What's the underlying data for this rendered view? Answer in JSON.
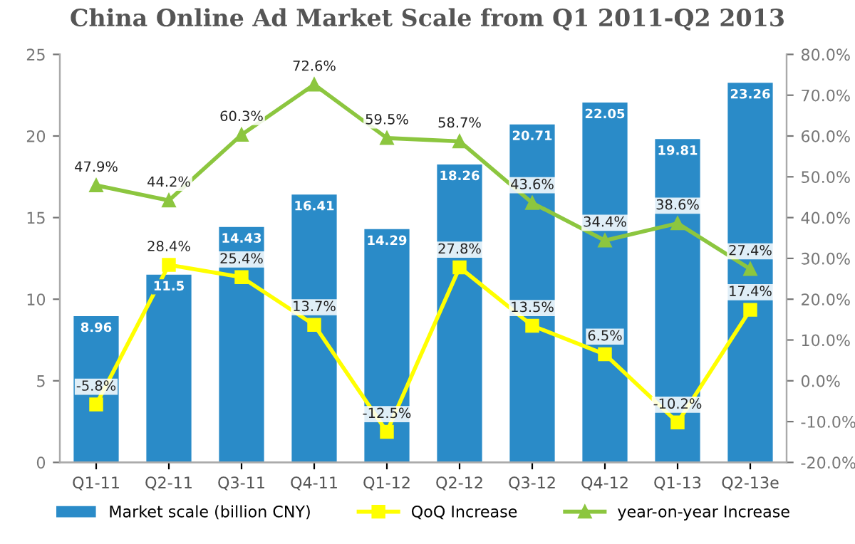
{
  "chart_data": {
    "type": "bar",
    "title": "China Online Ad Market Scale from Q1 2011-Q2 2013",
    "categories": [
      "Q1-11",
      "Q2-11",
      "Q3-11",
      "Q4-11",
      "Q1-12",
      "Q2-12",
      "Q3-12",
      "Q4-12",
      "Q1-13",
      "Q2-13e"
    ],
    "series": [
      {
        "name": "Market scale (billion CNY)",
        "type": "bar",
        "color": "#2a8bc8",
        "values": [
          8.96,
          11.5,
          14.43,
          16.41,
          14.29,
          18.26,
          20.71,
          22.05,
          19.81,
          23.26
        ],
        "value_labels": [
          "8.96",
          "11.5",
          "14.43",
          "16.41",
          "14.29",
          "18.26",
          "20.71",
          "22.05",
          "19.81",
          "23.26"
        ]
      },
      {
        "name": "QoQ Increase",
        "type": "line",
        "axis": "y2",
        "marker": "square",
        "color": "#ffff00",
        "values": [
          -5.8,
          28.4,
          25.4,
          13.7,
          -12.5,
          27.8,
          13.5,
          6.5,
          -10.2,
          17.4
        ],
        "value_labels": [
          "-5.8%",
          "28.4%",
          "25.4%",
          "13.7%",
          "-12.5%",
          "27.8%",
          "13.5%",
          "6.5%",
          "-10.2%",
          "17.4%"
        ]
      },
      {
        "name": "year-on-year Increase",
        "type": "line",
        "axis": "y2",
        "marker": "triangle",
        "color": "#8cc63f",
        "values": [
          47.9,
          44.2,
          60.3,
          72.6,
          59.5,
          58.7,
          43.6,
          34.4,
          38.6,
          27.4
        ],
        "value_labels": [
          "47.9%",
          "44.2%",
          "60.3%",
          "72.6%",
          "59.5%",
          "58.7%",
          "43.6%",
          "34.4%",
          "38.6%",
          "27.4%"
        ]
      }
    ],
    "ylim": [
      0,
      25
    ],
    "yticks": [
      0,
      5,
      10,
      15,
      20,
      25
    ],
    "y2lim": [
      -20,
      80
    ],
    "y2ticks": [
      {
        "value": -20,
        "label": "-20.0%"
      },
      {
        "value": -10,
        "label": "-10.0%"
      },
      {
        "value": 0,
        "label": "0.0%"
      },
      {
        "value": 10,
        "label": "10.0%"
      },
      {
        "value": 20,
        "label": "20.0%"
      },
      {
        "value": 30,
        "label": "30.0%"
      },
      {
        "value": 40,
        "label": "40.0%"
      },
      {
        "value": 50,
        "label": "50.0%"
      },
      {
        "value": 60,
        "label": "60.0%"
      },
      {
        "value": 70,
        "label": "70.0%"
      },
      {
        "value": 80,
        "label": "80.0%"
      }
    ],
    "grid": false,
    "legend": "bottom"
  }
}
